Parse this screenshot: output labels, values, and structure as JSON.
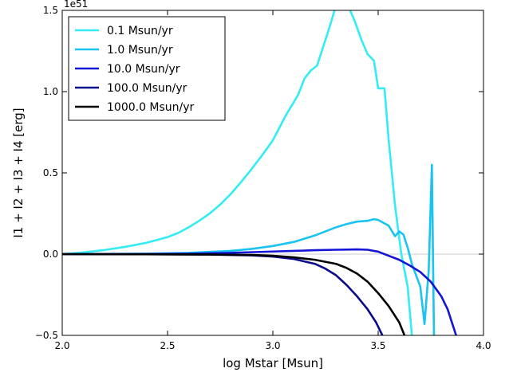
{
  "chart_data": {
    "type": "line",
    "title": "",
    "xlabel": "log Mstar [Msun]",
    "ylabel": "I1 + I2 + I3 + I4 [erg]",
    "y_offset_label": "1e51",
    "xlim": [
      2.0,
      4.0
    ],
    "ylim": [
      -0.5,
      1.5
    ],
    "x_ticks": [
      2.0,
      2.5,
      3.0,
      3.5,
      4.0
    ],
    "x_tick_labels": [
      "2.0",
      "2.5",
      "3.0",
      "3.5",
      "4.0"
    ],
    "y_ticks": [
      -0.5,
      0.0,
      0.5,
      1.0,
      1.5
    ],
    "y_tick_labels": [
      "−0.5",
      "0.0",
      "0.5",
      "1.0",
      "1.5"
    ],
    "grid": false,
    "hline_at_zero": true,
    "hline_color": "#cccccc",
    "legend_position": "top-left",
    "series": [
      {
        "name": "0.1 Msun/yr",
        "color": "#33ecf5",
        "points": [
          [
            2.0,
            0.0
          ],
          [
            2.1,
            0.01
          ],
          [
            2.2,
            0.025
          ],
          [
            2.3,
            0.045
          ],
          [
            2.4,
            0.07
          ],
          [
            2.5,
            0.105
          ],
          [
            2.55,
            0.13
          ],
          [
            2.6,
            0.165
          ],
          [
            2.65,
            0.205
          ],
          [
            2.7,
            0.25
          ],
          [
            2.75,
            0.305
          ],
          [
            2.8,
            0.37
          ],
          [
            2.85,
            0.445
          ],
          [
            2.9,
            0.525
          ],
          [
            2.95,
            0.61
          ],
          [
            3.0,
            0.7
          ],
          [
            3.03,
            0.775
          ],
          [
            3.06,
            0.85
          ],
          [
            3.09,
            0.915
          ],
          [
            3.12,
            0.98
          ],
          [
            3.15,
            1.08
          ],
          [
            3.18,
            1.13
          ],
          [
            3.21,
            1.16
          ],
          [
            3.24,
            1.28
          ],
          [
            3.27,
            1.4
          ],
          [
            3.3,
            1.53
          ],
          [
            3.33,
            1.6
          ],
          [
            3.36,
            1.52
          ],
          [
            3.39,
            1.43
          ],
          [
            3.42,
            1.32
          ],
          [
            3.45,
            1.23
          ],
          [
            3.48,
            1.19
          ],
          [
            3.5,
            1.02
          ],
          [
            3.53,
            1.02
          ],
          [
            3.55,
            0.7
          ],
          [
            3.58,
            0.3
          ],
          [
            3.61,
            0.0
          ],
          [
            3.64,
            -0.2
          ],
          [
            3.66,
            -0.5
          ]
        ]
      },
      {
        "name": "1.0 Msun/yr",
        "color": "#19c4f0",
        "points": [
          [
            2.0,
            0.0
          ],
          [
            2.2,
            0.001
          ],
          [
            2.4,
            0.003
          ],
          [
            2.6,
            0.008
          ],
          [
            2.8,
            0.02
          ],
          [
            2.9,
            0.032
          ],
          [
            3.0,
            0.05
          ],
          [
            3.1,
            0.075
          ],
          [
            3.15,
            0.095
          ],
          [
            3.2,
            0.115
          ],
          [
            3.25,
            0.14
          ],
          [
            3.3,
            0.165
          ],
          [
            3.35,
            0.185
          ],
          [
            3.4,
            0.2
          ],
          [
            3.45,
            0.205
          ],
          [
            3.48,
            0.215
          ],
          [
            3.5,
            0.21
          ],
          [
            3.55,
            0.175
          ],
          [
            3.58,
            0.11
          ],
          [
            3.6,
            0.14
          ],
          [
            3.62,
            0.12
          ],
          [
            3.64,
            0.04
          ],
          [
            3.66,
            -0.06
          ],
          [
            3.68,
            -0.13
          ],
          [
            3.7,
            -0.2
          ],
          [
            3.72,
            -0.43
          ],
          [
            3.74,
            -0.1
          ],
          [
            3.755,
            0.55
          ],
          [
            3.765,
            -0.5
          ]
        ]
      },
      {
        "name": "10.0 Msun/yr",
        "color": "#1414d8",
        "points": [
          [
            2.0,
            0.0
          ],
          [
            2.3,
            0.0
          ],
          [
            2.6,
            0.003
          ],
          [
            2.8,
            0.008
          ],
          [
            3.0,
            0.016
          ],
          [
            3.1,
            0.02
          ],
          [
            3.2,
            0.024
          ],
          [
            3.3,
            0.027
          ],
          [
            3.35,
            0.028
          ],
          [
            3.4,
            0.029
          ],
          [
            3.45,
            0.027
          ],
          [
            3.5,
            0.015
          ],
          [
            3.55,
            -0.01
          ],
          [
            3.6,
            -0.035
          ],
          [
            3.65,
            -0.07
          ],
          [
            3.7,
            -0.11
          ],
          [
            3.75,
            -0.17
          ],
          [
            3.8,
            -0.26
          ],
          [
            3.83,
            -0.34
          ],
          [
            3.85,
            -0.42
          ],
          [
            3.87,
            -0.5
          ]
        ]
      },
      {
        "name": "100.0 Msun/yr",
        "color": "#0a0a8c",
        "points": [
          [
            2.0,
            0.0
          ],
          [
            2.4,
            -0.001
          ],
          [
            2.7,
            -0.003
          ],
          [
            2.9,
            -0.008
          ],
          [
            3.0,
            -0.015
          ],
          [
            3.1,
            -0.03
          ],
          [
            3.2,
            -0.06
          ],
          [
            3.25,
            -0.09
          ],
          [
            3.3,
            -0.13
          ],
          [
            3.35,
            -0.19
          ],
          [
            3.4,
            -0.26
          ],
          [
            3.45,
            -0.34
          ],
          [
            3.49,
            -0.42
          ],
          [
            3.52,
            -0.5
          ]
        ]
      },
      {
        "name": "1000.0 Msun/yr",
        "color": "#000000",
        "points": [
          [
            2.0,
            0.0
          ],
          [
            2.4,
            -0.001
          ],
          [
            2.7,
            -0.002
          ],
          [
            2.9,
            -0.005
          ],
          [
            3.0,
            -0.01
          ],
          [
            3.1,
            -0.02
          ],
          [
            3.2,
            -0.035
          ],
          [
            3.3,
            -0.06
          ],
          [
            3.35,
            -0.085
          ],
          [
            3.4,
            -0.12
          ],
          [
            3.45,
            -0.17
          ],
          [
            3.5,
            -0.24
          ],
          [
            3.55,
            -0.32
          ],
          [
            3.6,
            -0.42
          ],
          [
            3.625,
            -0.5
          ]
        ]
      }
    ]
  }
}
